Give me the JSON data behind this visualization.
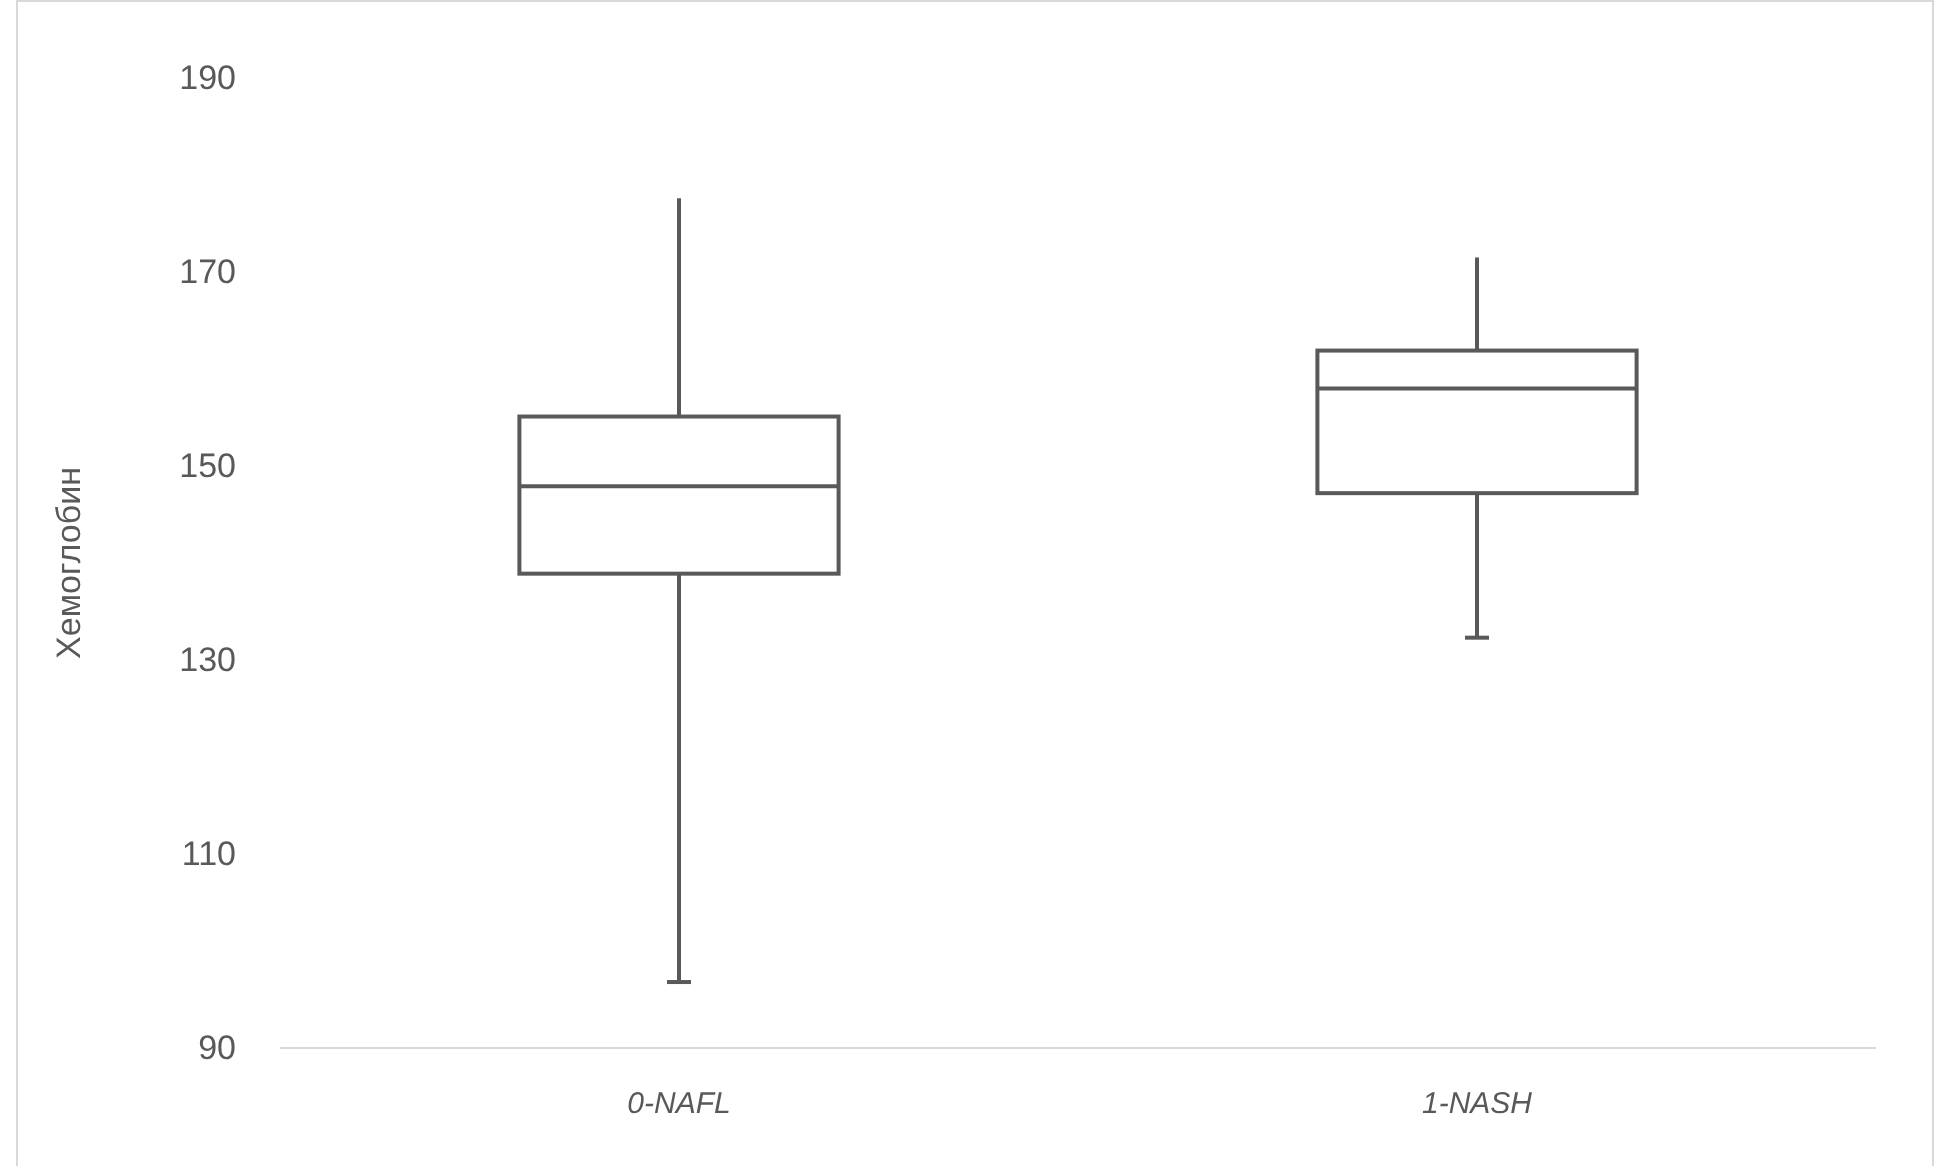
{
  "chart_data": {
    "type": "box",
    "ylabel": "Хемоглобин",
    "categories": [
      "0-NAFL",
      "1-NASH"
    ],
    "boxes": [
      {
        "low": 96.8,
        "q1": 138.9,
        "median": 147.9,
        "q3": 155.1,
        "high": 177.6
      },
      {
        "low": 132.3,
        "q1": 147.2,
        "median": 158.0,
        "q3": 161.9,
        "high": 171.5
      }
    ],
    "color": "#595959",
    "ylim": [
      90,
      190
    ],
    "yticks": [
      90,
      110,
      130,
      150,
      170,
      190
    ],
    "grid": false
  }
}
